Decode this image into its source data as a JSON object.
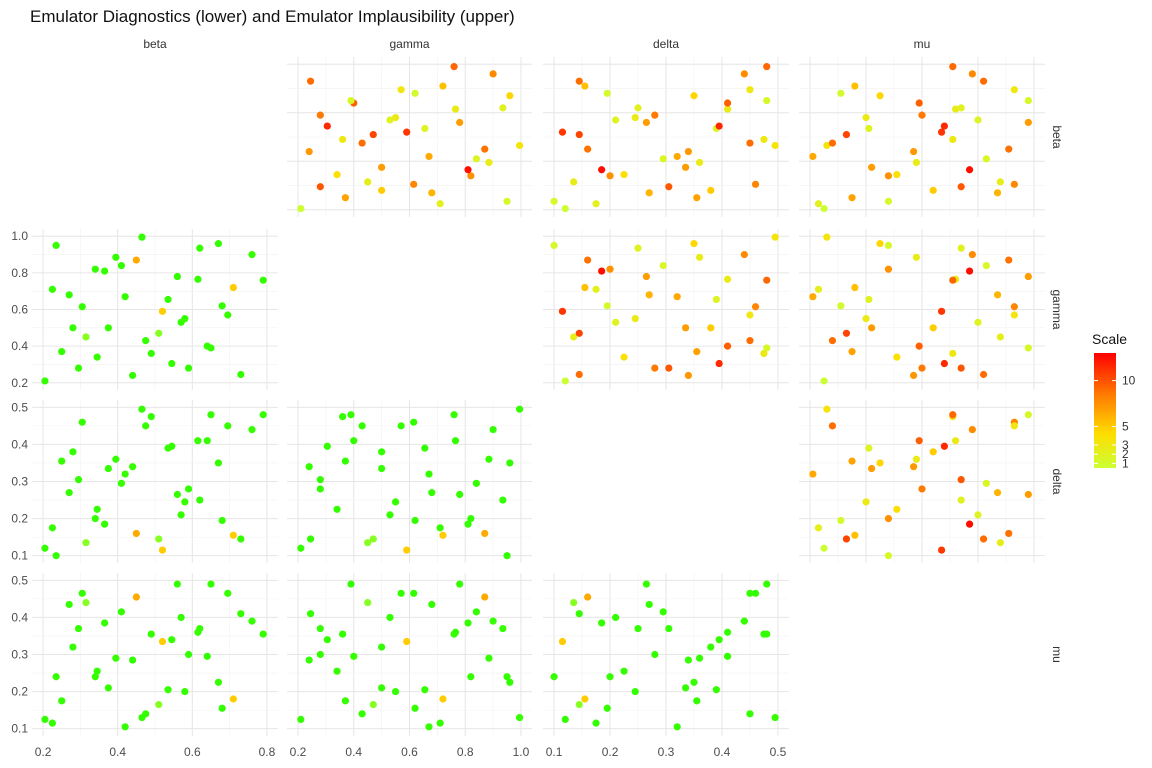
{
  "chart_data": {
    "type": "scatter",
    "title": "Emulator Diagnostics (lower) and Emulator Implausibility (upper)",
    "variables": [
      "beta",
      "gamma",
      "delta",
      "mu"
    ],
    "ranges": {
      "beta": [
        0.2,
        0.8
      ],
      "gamma": [
        0.2,
        1.0
      ],
      "delta": [
        0.1,
        0.5
      ],
      "mu": [
        0.1,
        0.5
      ]
    },
    "ticks": {
      "beta": [
        "0.2",
        "0.4",
        "0.6",
        "0.8"
      ],
      "gamma": [
        "0.2",
        "0.4",
        "0.6",
        "0.8",
        "1.0"
      ],
      "delta": [
        "0.1",
        "0.2",
        "0.3",
        "0.4",
        "0.5"
      ],
      "mu": [
        "0.1",
        "0.2",
        "0.3",
        "0.4",
        "0.5"
      ]
    },
    "grid": true,
    "legend": {
      "title": "Scale",
      "placement": "right",
      "ticks": [
        "1",
        "2",
        "3",
        "5",
        "10"
      ],
      "tick_values": [
        1,
        2,
        3,
        5,
        10
      ],
      "range": [
        0.5,
        13
      ],
      "colors": [
        "#ccff33",
        "#ffcc00",
        "#ff6600",
        "#ff0000"
      ]
    },
    "points": [
      {
        "beta": 0.205,
        "gamma": 0.21,
        "delta": 0.12,
        "mu": 0.125,
        "imp": 0.6,
        "diag": 1.0
      },
      {
        "beta": 0.225,
        "gamma": 0.71,
        "delta": 0.175,
        "mu": 0.115,
        "imp": 2.2,
        "diag": 1.0
      },
      {
        "beta": 0.235,
        "gamma": 0.95,
        "delta": 0.1,
        "mu": 0.24,
        "imp": 1.2,
        "diag": 1.0
      },
      {
        "beta": 0.25,
        "gamma": 0.37,
        "delta": 0.355,
        "mu": 0.175,
        "imp": 6.8,
        "diag": 1.0
      },
      {
        "beta": 0.27,
        "gamma": 0.68,
        "delta": 0.27,
        "mu": 0.435,
        "imp": 6.0,
        "diag": 1.0
      },
      {
        "beta": 0.28,
        "gamma": 0.5,
        "delta": 0.38,
        "mu": 0.32,
        "imp": 5.0,
        "diag": 1.0
      },
      {
        "beta": 0.295,
        "gamma": 0.28,
        "delta": 0.305,
        "mu": 0.37,
        "imp": 9.8,
        "diag": 1.0
      },
      {
        "beta": 0.305,
        "gamma": 0.615,
        "delta": 0.46,
        "mu": 0.465,
        "imp": 8.0,
        "diag": 1.0
      },
      {
        "beta": 0.315,
        "gamma": 0.45,
        "delta": 0.135,
        "mu": 0.44,
        "imp": 2.4,
        "diag": 1.5
      },
      {
        "beta": 0.34,
        "gamma": 0.82,
        "delta": 0.2,
        "mu": 0.24,
        "imp": 7.5,
        "diag": 1.0
      },
      {
        "beta": 0.345,
        "gamma": 0.34,
        "delta": 0.225,
        "mu": 0.255,
        "imp": 4.0,
        "diag": 1.0
      },
      {
        "beta": 0.365,
        "gamma": 0.81,
        "delta": 0.185,
        "mu": 0.385,
        "imp": 12.5,
        "diag": 1.0
      },
      {
        "beta": 0.375,
        "gamma": 0.5,
        "delta": 0.335,
        "mu": 0.21,
        "imp": 7.0,
        "diag": 1.0
      },
      {
        "beta": 0.395,
        "gamma": 0.885,
        "delta": 0.36,
        "mu": 0.29,
        "imp": 2.6,
        "diag": 1.0
      },
      {
        "beta": 0.41,
        "gamma": 0.84,
        "delta": 0.295,
        "mu": 0.415,
        "imp": 1.5,
        "diag": 1.0
      },
      {
        "beta": 0.42,
        "gamma": 0.67,
        "delta": 0.32,
        "mu": 0.105,
        "imp": 6.5,
        "diag": 1.0
      },
      {
        "beta": 0.44,
        "gamma": 0.24,
        "delta": 0.34,
        "mu": 0.285,
        "imp": 7.2,
        "diag": 1.0
      },
      {
        "beta": 0.45,
        "gamma": 0.87,
        "delta": 0.16,
        "mu": 0.455,
        "imp": 8.8,
        "diag": 6.0
      },
      {
        "beta": 0.465,
        "gamma": 0.995,
        "delta": 0.495,
        "mu": 0.13,
        "imp": 3.5,
        "diag": 1.0
      },
      {
        "beta": 0.475,
        "gamma": 0.43,
        "delta": 0.45,
        "mu": 0.14,
        "imp": 9.0,
        "diag": 1.0
      },
      {
        "beta": 0.49,
        "gamma": 0.36,
        "delta": 0.475,
        "mu": 0.355,
        "imp": 3.0,
        "diag": 1.0
      },
      {
        "beta": 0.51,
        "gamma": 0.47,
        "delta": 0.145,
        "mu": 0.165,
        "imp": 10.5,
        "diag": 1.5
      },
      {
        "beta": 0.52,
        "gamma": 0.59,
        "delta": 0.115,
        "mu": 0.335,
        "imp": 11.0,
        "diag": 4.0
      },
      {
        "beta": 0.535,
        "gamma": 0.655,
        "delta": 0.39,
        "mu": 0.205,
        "imp": 1.8,
        "diag": 1.0
      },
      {
        "beta": 0.545,
        "gamma": 0.305,
        "delta": 0.395,
        "mu": 0.34,
        "imp": 11.5,
        "diag": 1.0
      },
      {
        "beta": 0.56,
        "gamma": 0.78,
        "delta": 0.265,
        "mu": 0.49,
        "imp": 7.0,
        "diag": 1.0
      },
      {
        "beta": 0.57,
        "gamma": 0.53,
        "delta": 0.21,
        "mu": 0.4,
        "imp": 1.8,
        "diag": 1.0
      },
      {
        "beta": 0.58,
        "gamma": 0.55,
        "delta": 0.245,
        "mu": 0.2,
        "imp": 2.8,
        "diag": 1.0
      },
      {
        "beta": 0.59,
        "gamma": 0.28,
        "delta": 0.28,
        "mu": 0.3,
        "imp": 8.5,
        "diag": 1.0
      },
      {
        "beta": 0.615,
        "gamma": 0.765,
        "delta": 0.41,
        "mu": 0.36,
        "imp": 2.8,
        "diag": 1.0
      },
      {
        "beta": 0.62,
        "gamma": 0.935,
        "delta": 0.25,
        "mu": 0.37,
        "imp": 2.0,
        "diag": 1.0
      },
      {
        "beta": 0.64,
        "gamma": 0.4,
        "delta": 0.41,
        "mu": 0.295,
        "imp": 9.5,
        "diag": 1.0
      },
      {
        "beta": 0.65,
        "gamma": 0.39,
        "delta": 0.48,
        "mu": 0.49,
        "imp": 1.4,
        "diag": 1.0
      },
      {
        "beta": 0.67,
        "gamma": 0.96,
        "delta": 0.35,
        "mu": 0.225,
        "imp": 4.5,
        "diag": 1.0
      },
      {
        "beta": 0.68,
        "gamma": 0.62,
        "delta": 0.195,
        "mu": 0.155,
        "imp": 1.0,
        "diag": 1.0
      },
      {
        "beta": 0.695,
        "gamma": 0.57,
        "delta": 0.45,
        "mu": 0.465,
        "imp": 3.2,
        "diag": 1.0
      },
      {
        "beta": 0.71,
        "gamma": 0.72,
        "delta": 0.155,
        "mu": 0.18,
        "imp": 5.5,
        "diag": 3.5
      },
      {
        "beta": 0.73,
        "gamma": 0.245,
        "delta": 0.145,
        "mu": 0.41,
        "imp": 9.0,
        "diag": 1.0
      },
      {
        "beta": 0.76,
        "gamma": 0.9,
        "delta": 0.44,
        "mu": 0.39,
        "imp": 7.8,
        "diag": 1.0
      },
      {
        "beta": 0.79,
        "gamma": 0.76,
        "delta": 0.48,
        "mu": 0.355,
        "imp": 9.2,
        "diag": 1.0
      }
    ]
  }
}
